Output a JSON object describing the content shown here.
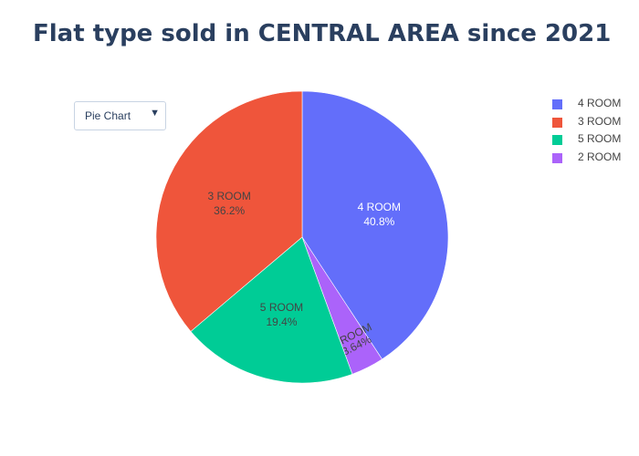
{
  "title": "Flat type sold in CENTRAL AREA since 2021",
  "dropdown": {
    "selected": "Pie Chart",
    "arrow": "▼"
  },
  "chart_data": {
    "type": "pie",
    "title": "Flat type sold in CENTRAL AREA since 2021",
    "slices": [
      {
        "label": "4 ROOM",
        "percent": 40.8,
        "percent_text": "40.8%",
        "color": "#636efa",
        "text_color": "#ffffff"
      },
      {
        "label": "2 ROOM",
        "percent": 3.64,
        "percent_text": "3.64%",
        "color": "#ab63fa",
        "text_color": "#444444"
      },
      {
        "label": "5 ROOM",
        "percent": 19.4,
        "percent_text": "19.4%",
        "color": "#00cc96",
        "text_color": "#444444"
      },
      {
        "label": "3 ROOM",
        "percent": 36.2,
        "percent_text": "36.2%",
        "color": "#ef553b",
        "text_color": "#444444"
      }
    ],
    "direction": "clockwise",
    "start": "top",
    "legend_position": "right",
    "legend": [
      {
        "label": "4 ROOM",
        "color": "#636efa"
      },
      {
        "label": "3 ROOM",
        "color": "#ef553b"
      },
      {
        "label": "5 ROOM",
        "color": "#00cc96"
      },
      {
        "label": "2 ROOM",
        "color": "#ab63fa"
      }
    ]
  }
}
